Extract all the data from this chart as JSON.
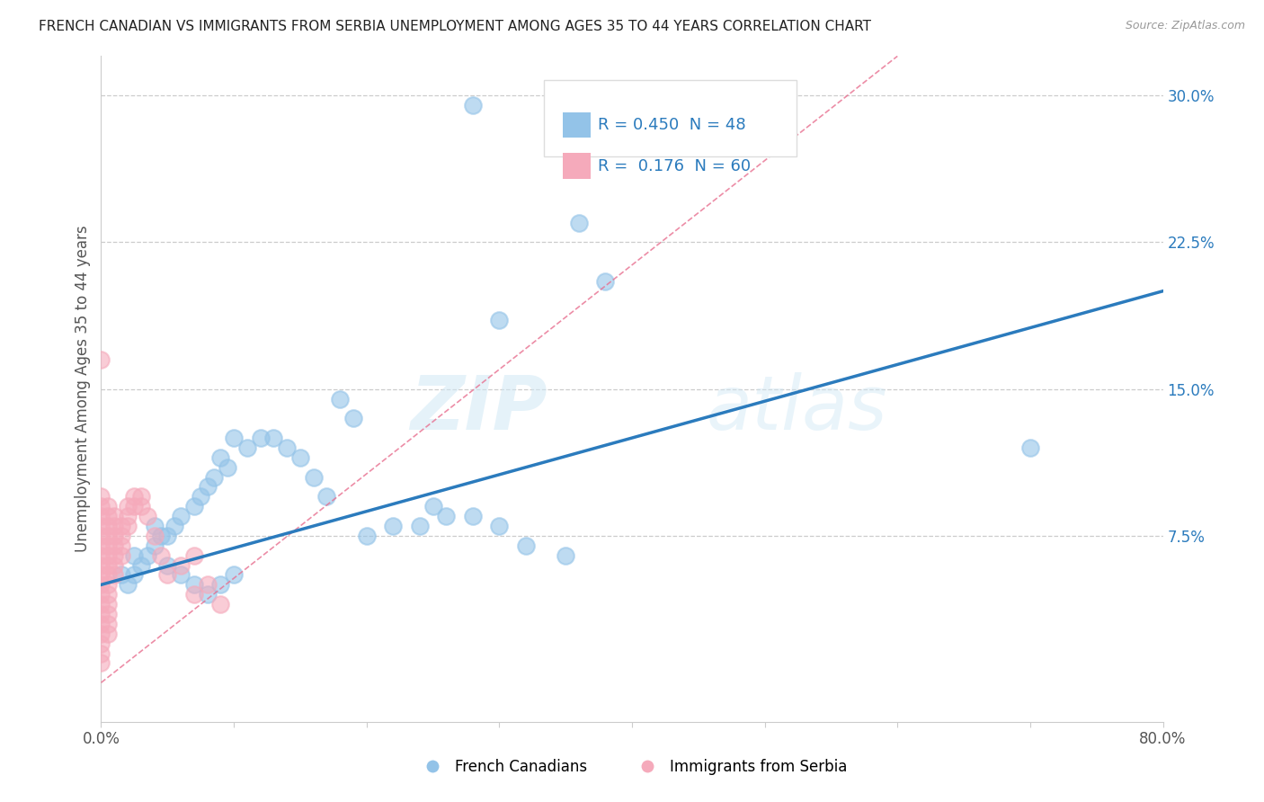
{
  "title": "FRENCH CANADIAN VS IMMIGRANTS FROM SERBIA UNEMPLOYMENT AMONG AGES 35 TO 44 YEARS CORRELATION CHART",
  "source_text": "Source: ZipAtlas.com",
  "ylabel": "Unemployment Among Ages 35 to 44 years",
  "xlim": [
    0.0,
    0.8
  ],
  "ylim": [
    -0.02,
    0.32
  ],
  "yticks_right": [
    0.075,
    0.15,
    0.225,
    0.3
  ],
  "ytick_labels_right": [
    "7.5%",
    "15.0%",
    "22.5%",
    "30.0%"
  ],
  "blue_R": "0.450",
  "blue_N": "48",
  "pink_R": "0.176",
  "pink_N": "60",
  "blue_color": "#93C3E8",
  "pink_color": "#F5AABB",
  "blue_line_color": "#2B7BBD",
  "pink_line_color": "#E87090",
  "watermark_ZIP": "ZIP",
  "watermark_atlas": "atlas",
  "legend_label_blue": "French Canadians",
  "legend_label_pink": "Immigrants from Serbia",
  "blue_trend_x": [
    0.0,
    0.8
  ],
  "blue_trend_y": [
    0.05,
    0.2
  ],
  "pink_trend_x": [
    0.0,
    0.6
  ],
  "pink_trend_y": [
    0.0,
    0.32
  ],
  "blue_scatter": [
    [
      0.28,
      0.295
    ],
    [
      0.36,
      0.235
    ],
    [
      0.38,
      0.205
    ],
    [
      0.3,
      0.185
    ],
    [
      0.18,
      0.145
    ],
    [
      0.19,
      0.135
    ],
    [
      0.12,
      0.125
    ],
    [
      0.13,
      0.125
    ],
    [
      0.1,
      0.125
    ],
    [
      0.14,
      0.12
    ],
    [
      0.11,
      0.12
    ],
    [
      0.09,
      0.115
    ],
    [
      0.15,
      0.115
    ],
    [
      0.095,
      0.11
    ],
    [
      0.085,
      0.105
    ],
    [
      0.16,
      0.105
    ],
    [
      0.08,
      0.1
    ],
    [
      0.075,
      0.095
    ],
    [
      0.17,
      0.095
    ],
    [
      0.07,
      0.09
    ],
    [
      0.06,
      0.085
    ],
    [
      0.055,
      0.08
    ],
    [
      0.05,
      0.075
    ],
    [
      0.045,
      0.075
    ],
    [
      0.2,
      0.075
    ],
    [
      0.22,
      0.08
    ],
    [
      0.24,
      0.08
    ],
    [
      0.26,
      0.085
    ],
    [
      0.25,
      0.09
    ],
    [
      0.28,
      0.085
    ],
    [
      0.3,
      0.08
    ],
    [
      0.32,
      0.07
    ],
    [
      0.35,
      0.065
    ],
    [
      0.7,
      0.12
    ],
    [
      0.04,
      0.07
    ],
    [
      0.035,
      0.065
    ],
    [
      0.03,
      0.06
    ],
    [
      0.025,
      0.055
    ],
    [
      0.02,
      0.05
    ],
    [
      0.015,
      0.055
    ],
    [
      0.025,
      0.065
    ],
    [
      0.04,
      0.08
    ],
    [
      0.05,
      0.06
    ],
    [
      0.06,
      0.055
    ],
    [
      0.07,
      0.05
    ],
    [
      0.08,
      0.045
    ],
    [
      0.09,
      0.05
    ],
    [
      0.1,
      0.055
    ]
  ],
  "pink_scatter": [
    [
      0.0,
      0.165
    ],
    [
      0.0,
      0.095
    ],
    [
      0.0,
      0.09
    ],
    [
      0.0,
      0.085
    ],
    [
      0.0,
      0.08
    ],
    [
      0.0,
      0.075
    ],
    [
      0.0,
      0.07
    ],
    [
      0.0,
      0.065
    ],
    [
      0.0,
      0.06
    ],
    [
      0.0,
      0.055
    ],
    [
      0.0,
      0.05
    ],
    [
      0.0,
      0.045
    ],
    [
      0.0,
      0.04
    ],
    [
      0.0,
      0.035
    ],
    [
      0.0,
      0.03
    ],
    [
      0.0,
      0.025
    ],
    [
      0.0,
      0.02
    ],
    [
      0.0,
      0.015
    ],
    [
      0.0,
      0.01
    ],
    [
      0.005,
      0.09
    ],
    [
      0.005,
      0.085
    ],
    [
      0.005,
      0.08
    ],
    [
      0.005,
      0.075
    ],
    [
      0.005,
      0.07
    ],
    [
      0.005,
      0.065
    ],
    [
      0.005,
      0.06
    ],
    [
      0.005,
      0.055
    ],
    [
      0.005,
      0.05
    ],
    [
      0.005,
      0.045
    ],
    [
      0.005,
      0.04
    ],
    [
      0.005,
      0.035
    ],
    [
      0.005,
      0.03
    ],
    [
      0.005,
      0.025
    ],
    [
      0.01,
      0.085
    ],
    [
      0.01,
      0.08
    ],
    [
      0.01,
      0.075
    ],
    [
      0.01,
      0.07
    ],
    [
      0.01,
      0.065
    ],
    [
      0.01,
      0.06
    ],
    [
      0.01,
      0.055
    ],
    [
      0.015,
      0.08
    ],
    [
      0.015,
      0.075
    ],
    [
      0.015,
      0.07
    ],
    [
      0.015,
      0.065
    ],
    [
      0.02,
      0.09
    ],
    [
      0.02,
      0.085
    ],
    [
      0.02,
      0.08
    ],
    [
      0.025,
      0.095
    ],
    [
      0.025,
      0.09
    ],
    [
      0.03,
      0.095
    ],
    [
      0.03,
      0.09
    ],
    [
      0.035,
      0.085
    ],
    [
      0.04,
      0.075
    ],
    [
      0.045,
      0.065
    ],
    [
      0.05,
      0.055
    ],
    [
      0.06,
      0.06
    ],
    [
      0.07,
      0.065
    ],
    [
      0.07,
      0.045
    ],
    [
      0.08,
      0.05
    ],
    [
      0.09,
      0.04
    ]
  ]
}
